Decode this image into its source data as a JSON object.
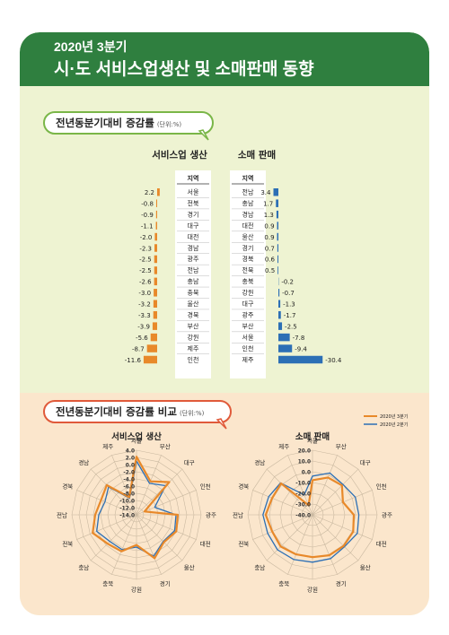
{
  "header": {
    "title_line1": "2020년 3분기",
    "title_line2": "시·도 서비스업생산 및 소매판매 동향"
  },
  "section1": {
    "title": "전년동분기대비 증감률",
    "unit": "(단위:%)"
  },
  "section2": {
    "title": "전년동분기대비 증감률 비교",
    "unit": "(단위:%)"
  },
  "colors": {
    "orange": "#e8892a",
    "blue": "#2c6fb5",
    "green": "#2f7f3f"
  },
  "chart_data": [
    {
      "type": "bar",
      "title": "서비스업 생산",
      "region_header": "지역",
      "categories": [
        "서울",
        "전북",
        "경기",
        "대구",
        "대전",
        "경남",
        "광주",
        "전남",
        "충남",
        "충북",
        "울산",
        "경북",
        "부산",
        "강원",
        "제주",
        "인천"
      ],
      "values": [
        2.2,
        -0.8,
        -0.9,
        -1.1,
        -2.0,
        -2.3,
        -2.5,
        -2.5,
        -2.6,
        -3.0,
        -3.2,
        -3.3,
        -3.9,
        -5.6,
        -8.7,
        -11.6
      ],
      "value_labels": [
        "2.2",
        "-0.8",
        "-0.9",
        "-1.1",
        "-2.0",
        "-2.3",
        "-2.5",
        "-2.5",
        "-2.6",
        "-3.0",
        "-3.2",
        "-3.3",
        "-3.9",
        "-5.6",
        "-8.7",
        "-11.6"
      ]
    },
    {
      "type": "bar",
      "title": "소매 판매",
      "region_header": "지역",
      "categories": [
        "전남",
        "충남",
        "경남",
        "대전",
        "울산",
        "경기",
        "경북",
        "전북",
        "충북",
        "강원",
        "대구",
        "광주",
        "부산",
        "서울",
        "인천",
        "제주"
      ],
      "values": [
        3.4,
        1.7,
        1.3,
        0.9,
        0.9,
        0.7,
        0.6,
        0.5,
        -0.2,
        -0.7,
        -1.3,
        -1.7,
        -2.5,
        -7.8,
        -9.4,
        -30.4
      ],
      "value_labels": [
        "3.4",
        "1.7",
        "1.3",
        "0.9",
        "0.9",
        "0.7",
        "0.6",
        "0.5",
        "-0.2",
        "-0.7",
        "-1.3",
        "-1.7",
        "-2.5",
        "-7.8",
        "-9.4",
        "-30.4"
      ]
    },
    {
      "type": "radar",
      "title": "서비스업 생산",
      "axes": [
        "서울",
        "부산",
        "대구",
        "인천",
        "광주",
        "대전",
        "울산",
        "경기",
        "강원",
        "충북",
        "충남",
        "전북",
        "전남",
        "경북",
        "경남",
        "제주"
      ],
      "range": [
        -14.0,
        4.0
      ],
      "ticks": [
        4.0,
        2.0,
        0.0,
        -2.0,
        -4.0,
        -6.0,
        -8.0,
        -10.0,
        -12.0,
        -14.0
      ],
      "tick_labels": [
        "4.0",
        "2.0",
        "0.0",
        "-2.0",
        "-4.0",
        "-6.0",
        "-8.0",
        "-10.0",
        "-12.0",
        "-14.0"
      ],
      "series": [
        {
          "name": "2020년 3분기",
          "values": [
            2.2,
            -3.9,
            -1.1,
            -11.6,
            -2.5,
            -2.0,
            -3.2,
            -0.9,
            -5.6,
            -3.0,
            -2.6,
            -0.8,
            -2.5,
            -3.3,
            -2.3,
            -8.7
          ]
        },
        {
          "name": "2020년 2분기",
          "values": [
            1.0,
            -4.5,
            -2.5,
            -8.5,
            -3.0,
            -2.5,
            -3.5,
            -1.5,
            -5.0,
            -3.5,
            -3.5,
            -2.0,
            -3.5,
            -4.5,
            -3.0,
            -9.0
          ]
        }
      ]
    },
    {
      "type": "radar",
      "title": "소매 판매",
      "axes": [
        "서울",
        "부산",
        "대구",
        "인천",
        "광주",
        "대전",
        "울산",
        "경기",
        "강원",
        "충북",
        "충남",
        "전북",
        "전남",
        "경북",
        "경남",
        "제주"
      ],
      "range": [
        -40.0,
        20.0
      ],
      "ticks": [
        20.0,
        10.0,
        0.0,
        -10.0,
        -20.0,
        -30.0,
        -40.0
      ],
      "tick_labels": [
        "20.0",
        "10.0",
        "0.0",
        "-10.0",
        "-20.0",
        "-30.0",
        "-40.0"
      ],
      "legend": [
        "2020년 3분기",
        "2020년 2분기"
      ],
      "series": [
        {
          "name": "2020년 3분기",
          "values": [
            -7.8,
            -2.5,
            -1.3,
            -9.4,
            -1.7,
            0.9,
            0.9,
            0.7,
            -0.7,
            -0.2,
            1.7,
            0.5,
            3.4,
            0.6,
            1.3,
            -30.4
          ]
        },
        {
          "name": "2020년 2분기",
          "values": [
            -4.0,
            2.0,
            0.0,
            3.0,
            3.0,
            5.0,
            2.0,
            4.0,
            4.0,
            5.0,
            6.0,
            5.0,
            6.0,
            4.0,
            2.0,
            -20.0
          ]
        }
      ]
    }
  ]
}
